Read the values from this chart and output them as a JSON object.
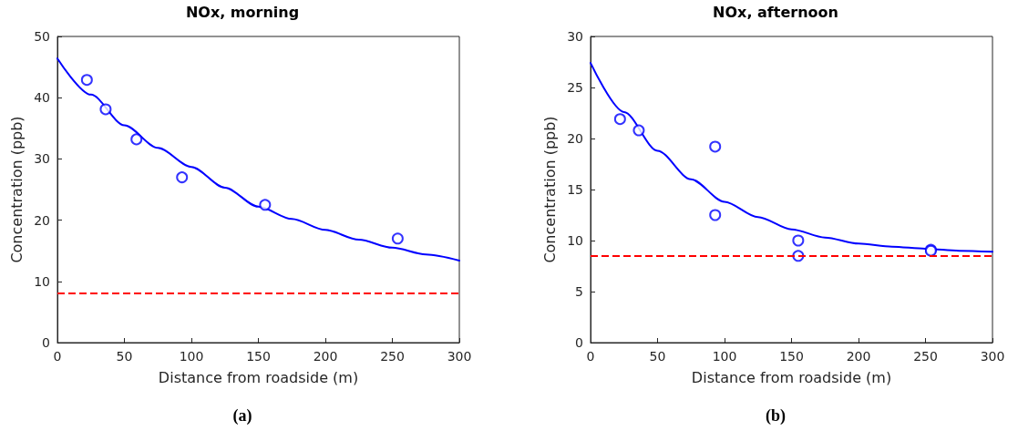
{
  "chart_data": [
    {
      "type": "scatter",
      "title": "NOx, morning",
      "xlabel": "Distance from roadside (m)",
      "ylabel": "Concentration (ppb)",
      "annotations": [
        "(a)"
      ],
      "xlim": [
        0,
        300
      ],
      "xticks": [
        0,
        50,
        100,
        150,
        200,
        250,
        300
      ],
      "ylim": [
        0,
        50
      ],
      "yticks": [
        0,
        10,
        20,
        30,
        40,
        50
      ],
      "grid": false,
      "series": [
        {
          "marker": "circle",
          "color": "#0000ff",
          "x": [
            22,
            36,
            59,
            93,
            155,
            254
          ],
          "values": [
            42.9,
            38.1,
            33.2,
            27.0,
            22.5,
            17.0
          ]
        },
        {
          "type": "line",
          "marker": "none",
          "line_style": "solid",
          "color": "#0000ff",
          "x": [
            0,
            25,
            50,
            75,
            100,
            125,
            150,
            175,
            200,
            225,
            250,
            275,
            300
          ],
          "values": [
            46.4,
            40.5,
            35.5,
            31.8,
            28.7,
            25.3,
            22.2,
            20.2,
            18.4,
            16.8,
            15.5,
            14.4,
            13.4
          ]
        }
      ],
      "ref_lines": [
        {
          "axis": "y",
          "value": 8,
          "color": "#ff0000",
          "line_style": "dashed"
        }
      ]
    },
    {
      "type": "scatter",
      "title": "NOx, afternoon",
      "xlabel": "Distance from roadside (m)",
      "ylabel": "Concentration (ppb)",
      "annotations": [
        "(b)"
      ],
      "xlim": [
        0,
        300
      ],
      "xticks": [
        0,
        50,
        100,
        150,
        200,
        250,
        300
      ],
      "ylim": [
        0,
        30
      ],
      "yticks": [
        0,
        5,
        10,
        15,
        20,
        25,
        30
      ],
      "grid": false,
      "series": [
        {
          "marker": "circle",
          "color": "#0000ff",
          "x": [
            22,
            36,
            93,
            93,
            155,
            155,
            254,
            254
          ],
          "values": [
            21.9,
            20.8,
            19.2,
            12.5,
            10.0,
            8.5,
            9.1,
            9.0
          ]
        },
        {
          "type": "line",
          "marker": "none",
          "line_style": "solid",
          "color": "#0000ff",
          "x": [
            0,
            25,
            50,
            75,
            100,
            125,
            150,
            175,
            200,
            225,
            250,
            275,
            300
          ],
          "values": [
            27.4,
            22.6,
            18.8,
            16.0,
            13.8,
            12.3,
            11.1,
            10.3,
            9.7,
            9.4,
            9.2,
            9.0,
            8.9
          ]
        }
      ],
      "ref_lines": [
        {
          "axis": "y",
          "value": 8.5,
          "color": "#ff0000",
          "line_style": "dashed"
        }
      ]
    }
  ]
}
